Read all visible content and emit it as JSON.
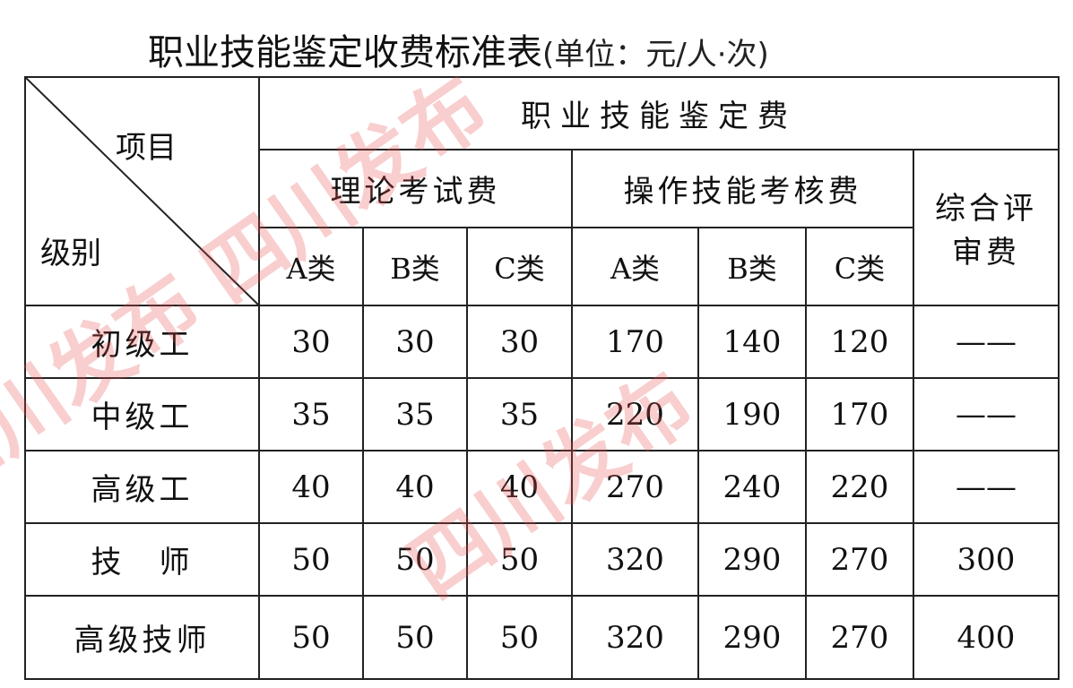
{
  "title": "职业技能鉴定收费标准表",
  "unit": "(单位：元/人·次)",
  "corner": {
    "item": "项目",
    "level": "级别"
  },
  "header": {
    "main": "职业技能鉴定费",
    "theory": "理论考试费",
    "practical": "操作技能考核费",
    "review": "综合评审费",
    "classes": [
      "A类",
      "B类",
      "C类",
      "A类",
      "B类",
      "C类"
    ]
  },
  "rows": [
    {
      "label": "初级工",
      "values": [
        "30",
        "30",
        "30",
        "170",
        "140",
        "120",
        "——"
      ]
    },
    {
      "label": "中级工",
      "values": [
        "35",
        "35",
        "35",
        "220",
        "190",
        "170",
        "——"
      ]
    },
    {
      "label": "高级工",
      "values": [
        "40",
        "40",
        "40",
        "270",
        "240",
        "220",
        "——"
      ]
    },
    {
      "label": "技　师",
      "values": [
        "50",
        "50",
        "50",
        "320",
        "290",
        "270",
        "300"
      ]
    },
    {
      "label": "高级技师",
      "values": [
        "50",
        "50",
        "50",
        "320",
        "290",
        "270",
        "400"
      ]
    }
  ],
  "watermark": "四川发布",
  "watermark_color": "#eb5050"
}
